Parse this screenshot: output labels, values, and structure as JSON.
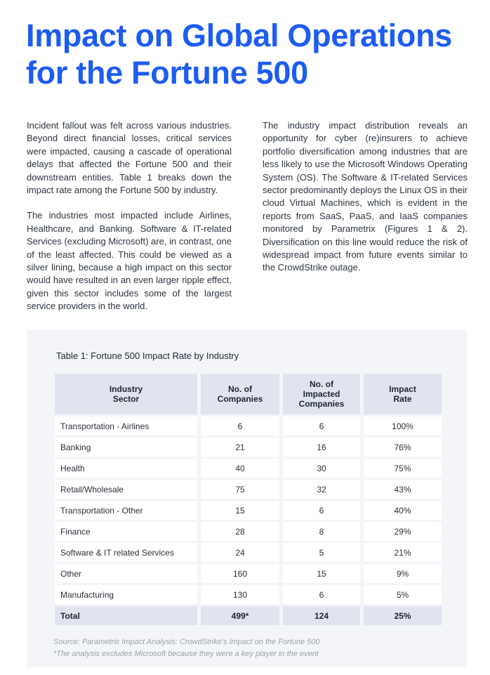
{
  "title": "Impact on Global Operations for the Fortune 500",
  "left_column": [
    "Incident fallout was felt across various industries. Beyond direct financial losses, critical services were impacted, causing a cascade of operational delays that affected the Fortune 500 and their downstream entities. Table 1 breaks down the impact rate among the Fortune 500 by industry.",
    "The industries most impacted include Airlines, Healthcare, and Banking. Software & IT-related Services (excluding Microsoft) are, in contrast, one of the least affected. This could be viewed as a silver lining, because a high impact on this sector would have resulted in an even larger ripple effect, given this sector includes some of the largest service providers in the world."
  ],
  "right_column": [
    "The industry impact distribution reveals an opportunity for cyber (re)insurers to achieve portfolio diversification among industries that are less likely to use the Microsoft Windows Operating System (OS). The Software & IT-related Services sector predominantly deploys the Linux OS in their cloud Virtual Machines, which is evident in the reports from SaaS, PaaS, and IaaS companies monitored by Parametrix (Figures 1 & 2). Diversification on this line would reduce the risk of widespread impact from future events similar to the CrowdStrike outage."
  ],
  "table": {
    "caption": "Table 1: Fortune 500  Impact Rate by Industry",
    "headers": [
      "Industry Sector",
      "No. of Companies",
      "No. of Impacted Companies",
      "Impact Rate"
    ],
    "rows": [
      [
        "Transportation - Airlines",
        "6",
        "6",
        "100%"
      ],
      [
        "Banking",
        "21",
        "16",
        "76%"
      ],
      [
        "Health",
        "40",
        "30",
        "75%"
      ],
      [
        "Retail/Wholesale",
        "75",
        "32",
        "43%"
      ],
      [
        "Transportation - Other",
        "15",
        "6",
        "40%"
      ],
      [
        "Finance",
        "28",
        "8",
        "29%"
      ],
      [
        "Software & IT related Services",
        "24",
        "5",
        "21%"
      ],
      [
        "Other",
        "160",
        "15",
        "9%"
      ],
      [
        "Manufacturing",
        "130",
        "6",
        "5%"
      ]
    ],
    "total": [
      "Total",
      "499*",
      "124",
      "25%"
    ],
    "source": "Source: Parametrix Impact Analysis: CrowdStrike's Impact on the Fortune 500",
    "footnote": "*The analysis excludes Microsoft because they were a key player in the event"
  },
  "colors": {
    "title": "#1d5cf2",
    "header_bg": "#dfe4ee",
    "panel_bg": "#f4f5f9"
  }
}
